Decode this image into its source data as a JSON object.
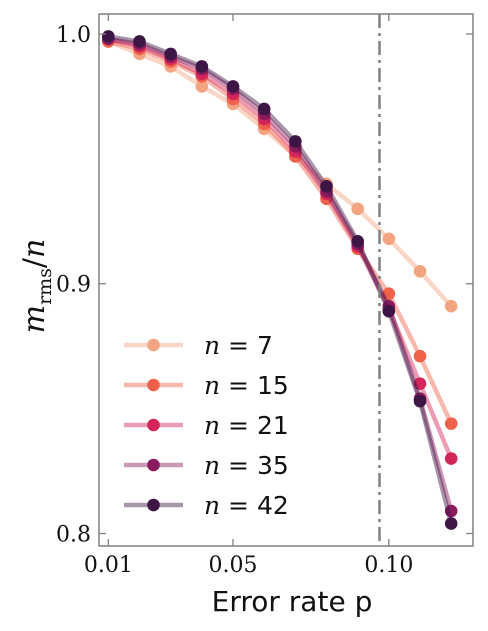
{
  "chart_data": {
    "type": "line",
    "xlabel": "Error rate p",
    "ylabel": "m_rms/n",
    "xlim": [
      0.007,
      0.127
    ],
    "ylim": [
      0.795,
      1.008
    ],
    "x_ticks": [
      0.01,
      0.05,
      0.1
    ],
    "x_tick_labels": [
      "0.01",
      "0.05",
      "0.10"
    ],
    "y_ticks": [
      0.8,
      0.9,
      1.0
    ],
    "y_tick_labels": [
      "0.8",
      "0.9",
      "1.0"
    ],
    "vline": {
      "x": 0.097,
      "style": "dash-dot",
      "color": "#808080"
    },
    "grid": false,
    "legend_position": "lower-left",
    "x": [
      0.01,
      0.02,
      0.03,
      0.04,
      0.05,
      0.06,
      0.07,
      0.08,
      0.09,
      0.1,
      0.11,
      0.12
    ],
    "series": [
      {
        "name": "n = 7",
        "label_var": "n",
        "label_val": "7",
        "color": "#f3a481",
        "values": [
          0.997,
          0.992,
          0.987,
          0.979,
          0.972,
          0.962,
          0.951,
          0.94,
          0.93,
          0.918,
          0.905,
          0.891
        ]
      },
      {
        "name": "n = 15",
        "label_var": "n",
        "label_val": "15",
        "color": "#ef6149",
        "values": [
          0.997,
          0.994,
          0.989,
          0.983,
          0.974,
          0.964,
          0.951,
          0.934,
          0.914,
          0.896,
          0.871,
          0.844
        ]
      },
      {
        "name": "n = 21",
        "label_var": "n",
        "label_val": "21",
        "color": "#d42659",
        "values": [
          0.998,
          0.995,
          0.99,
          0.984,
          0.976,
          0.966,
          0.953,
          0.936,
          0.915,
          0.89,
          0.86,
          0.83
        ]
      },
      {
        "name": "n = 35",
        "label_var": "n",
        "label_val": "35",
        "color": "#8b1a5e",
        "values": [
          0.998,
          0.996,
          0.991,
          0.986,
          0.978,
          0.968,
          0.955,
          0.937,
          0.916,
          0.891,
          0.854,
          0.809
        ]
      },
      {
        "name": "n = 42",
        "label_var": "n",
        "label_val": "42",
        "color": "#3d1645",
        "values": [
          0.999,
          0.997,
          0.992,
          0.987,
          0.979,
          0.97,
          0.957,
          0.939,
          0.917,
          0.889,
          0.853,
          0.804
        ]
      }
    ]
  }
}
